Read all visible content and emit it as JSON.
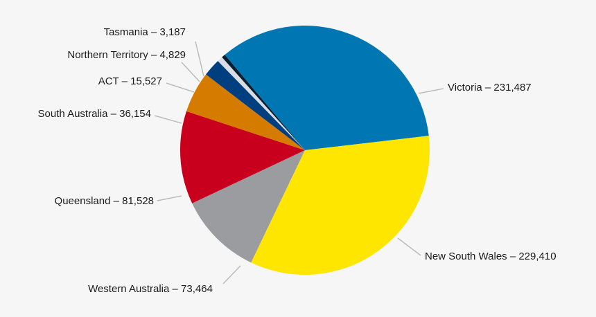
{
  "chart_data": {
    "type": "pie",
    "categories": [
      "Victoria – 231,487",
      "New South Wales – 229,410",
      "Western Australia – 73,464",
      "Queensland – 81,528",
      "South Australia – 36,154",
      "ACT – 15,527",
      "Northern Territory – 4,829",
      "Tasmania – 3,187"
    ],
    "values": [
      231487,
      229410,
      73464,
      81528,
      36154,
      15527,
      4829,
      3187
    ],
    "colors": [
      "#0077b3",
      "#ffe600",
      "#9b9ca0",
      "#c8001e",
      "#d47b00",
      "#003f7f",
      "#d8dde3",
      "#0b1f33"
    ]
  }
}
